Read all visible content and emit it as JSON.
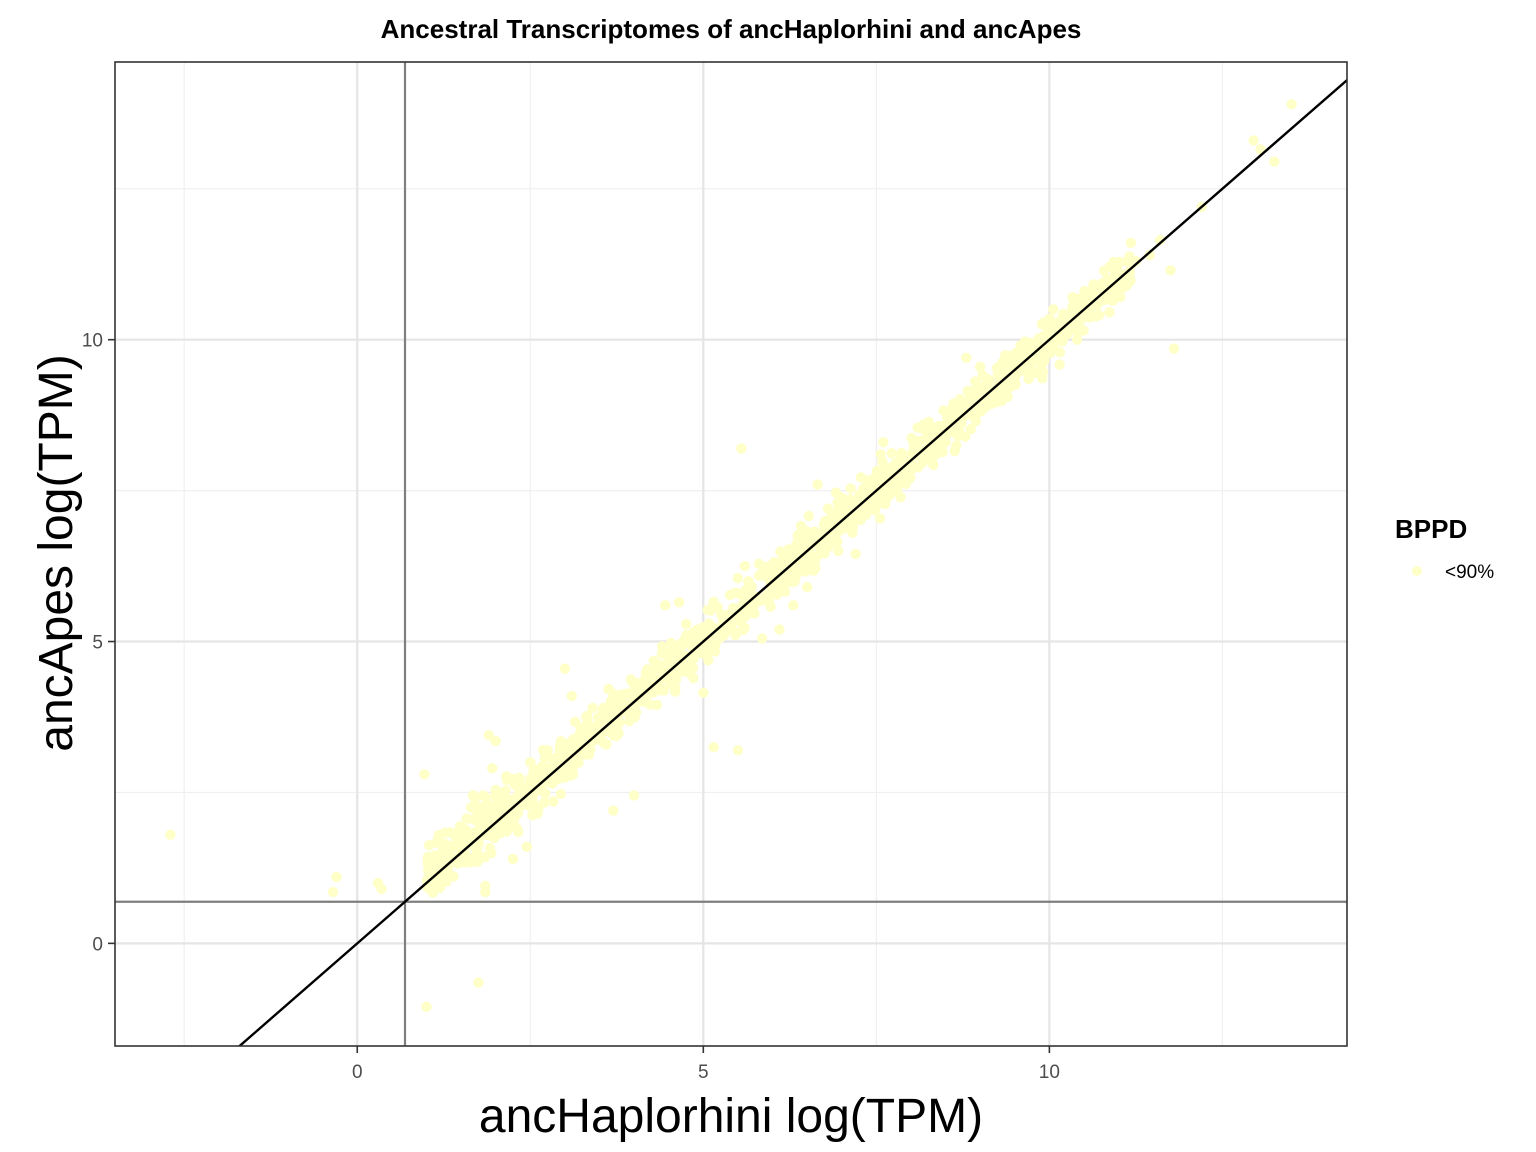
{
  "chart_data": {
    "type": "scatter",
    "title": "Ancestral Transcriptomes of ancHaplorhini and ancApes",
    "xlabel": "ancHaplorhini log(TPM)",
    "ylabel": "ancApes log(TPM)",
    "xlim": [
      -3.5,
      14.3
    ],
    "ylim": [
      -1.7,
      14.6
    ],
    "x_ticks": [
      0,
      5,
      10
    ],
    "y_ticks": [
      0,
      5,
      10
    ],
    "x_tick_labels": [
      "0",
      "5",
      "10"
    ],
    "y_tick_labels": [
      "0",
      "5",
      "10"
    ],
    "grid": true,
    "theme": "bw",
    "legend": {
      "title": "BPPD",
      "placement": "right",
      "entries": [
        "<90%"
      ]
    },
    "series": [
      {
        "name": "<90%",
        "color": "#ffffc8",
        "trend": {
          "relation": "identity",
          "x_from": 1.0,
          "x_to": 11.2,
          "spread": 0.35
        },
        "points": [
          [
            -2.7,
            1.8
          ],
          [
            -0.35,
            0.85
          ],
          [
            -0.3,
            1.1
          ],
          [
            0.3,
            1.0
          ],
          [
            0.35,
            0.9
          ],
          [
            0.97,
            2.8
          ],
          [
            1.0,
            -1.05
          ],
          [
            1.75,
            -0.65
          ],
          [
            1.85,
            0.95
          ],
          [
            1.85,
            0.85
          ],
          [
            1.9,
            3.45
          ],
          [
            2.0,
            3.35
          ],
          [
            1.95,
            2.9
          ],
          [
            2.25,
            1.4
          ],
          [
            2.45,
            1.6
          ],
          [
            2.5,
            3.0
          ],
          [
            2.75,
            3.2
          ],
          [
            3.0,
            4.55
          ],
          [
            3.1,
            4.1
          ],
          [
            3.4,
            3.9
          ],
          [
            3.7,
            2.2
          ],
          [
            4.0,
            2.45
          ],
          [
            4.4,
            4.8
          ],
          [
            4.45,
            5.6
          ],
          [
            4.65,
            5.65
          ],
          [
            4.7,
            4.5
          ],
          [
            5.0,
            4.15
          ],
          [
            5.15,
            3.25
          ],
          [
            5.5,
            3.2
          ],
          [
            5.55,
            8.2
          ],
          [
            5.6,
            6.25
          ],
          [
            5.65,
            6.0
          ],
          [
            5.7,
            5.9
          ],
          [
            5.85,
            5.05
          ],
          [
            6.1,
            5.2
          ],
          [
            6.3,
            5.6
          ],
          [
            6.5,
            5.9
          ],
          [
            6.65,
            7.6
          ],
          [
            6.8,
            7.2
          ],
          [
            6.95,
            6.5
          ],
          [
            7.2,
            6.45
          ],
          [
            7.35,
            7.1
          ],
          [
            7.6,
            8.3
          ],
          [
            8.05,
            8.1
          ],
          [
            8.5,
            8.3
          ],
          [
            8.8,
            9.7
          ],
          [
            9.0,
            9.55
          ],
          [
            9.1,
            9.35
          ],
          [
            9.5,
            9.4
          ],
          [
            9.7,
            9.35
          ],
          [
            9.9,
            10.05
          ],
          [
            10.05,
            10.25
          ],
          [
            10.2,
            10.2
          ],
          [
            10.4,
            10.0
          ],
          [
            10.6,
            10.6
          ],
          [
            10.9,
            10.9
          ],
          [
            11.0,
            11.25
          ],
          [
            11.25,
            11.3
          ],
          [
            11.45,
            11.4
          ],
          [
            11.6,
            11.65
          ],
          [
            11.75,
            11.15
          ],
          [
            11.8,
            9.85
          ],
          [
            12.2,
            12.2
          ],
          [
            12.95,
            13.3
          ],
          [
            13.05,
            13.15
          ],
          [
            13.25,
            12.95
          ],
          [
            13.5,
            13.9
          ]
        ]
      }
    ],
    "reference_lines": [
      {
        "kind": "identity",
        "slope": 1,
        "intercept": 0,
        "color": "#000000"
      },
      {
        "kind": "vline",
        "x": 0.69,
        "color": "#7f7f7f"
      },
      {
        "kind": "hline",
        "y": 0.69,
        "color": "#7f7f7f"
      }
    ]
  }
}
